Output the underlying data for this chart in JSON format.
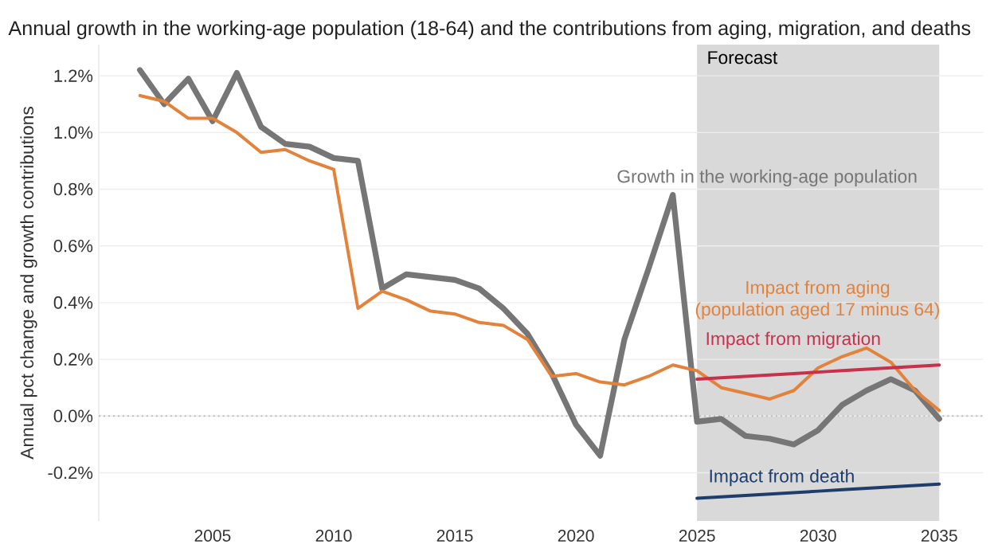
{
  "chart_data": {
    "type": "line",
    "title": "Annual growth in the working-age population (18-64) and the contributions from aging, migration, and deaths",
    "ylabel": "Annual pct change and growth contributions",
    "x": [
      2002,
      2003,
      2004,
      2005,
      2006,
      2007,
      2008,
      2009,
      2010,
      2011,
      2012,
      2013,
      2014,
      2015,
      2016,
      2017,
      2018,
      2019,
      2020,
      2021,
      2022,
      2023,
      2024,
      2025,
      2026,
      2027,
      2028,
      2029,
      2030,
      2031,
      2032,
      2033,
      2034,
      2035
    ],
    "series": [
      {
        "name": "Growth in the working-age population",
        "color": "#767676",
        "values": [
          1.22,
          1.1,
          1.19,
          1.04,
          1.21,
          1.02,
          0.96,
          0.95,
          0.91,
          0.9,
          0.45,
          0.5,
          0.49,
          0.48,
          0.45,
          0.38,
          0.29,
          0.15,
          -0.03,
          -0.14,
          0.27,
          0.52,
          0.78,
          -0.02,
          -0.01,
          -0.07,
          -0.08,
          -0.1,
          -0.05,
          0.04,
          0.09,
          0.13,
          0.09,
          -0.01
        ]
      },
      {
        "name": "Impact from aging (population aged 17 minus 64)",
        "color": "#e3823b",
        "values": [
          1.13,
          1.11,
          1.05,
          1.05,
          1.0,
          0.93,
          0.94,
          0.9,
          0.87,
          0.38,
          0.44,
          0.41,
          0.37,
          0.36,
          0.33,
          0.32,
          0.27,
          0.14,
          0.15,
          0.12,
          0.11,
          0.14,
          0.18,
          0.16,
          0.1,
          0.08,
          0.06,
          0.09,
          0.17,
          0.21,
          0.24,
          0.19,
          0.09,
          0.02
        ]
      },
      {
        "name": "Impact from migration",
        "color": "#c8304b",
        "values": [
          null,
          null,
          null,
          null,
          null,
          null,
          null,
          null,
          null,
          null,
          null,
          null,
          null,
          null,
          null,
          null,
          null,
          null,
          null,
          null,
          null,
          null,
          null,
          0.13,
          0.135,
          0.14,
          0.145,
          0.15,
          0.155,
          0.16,
          0.165,
          0.17,
          0.175,
          0.18
        ]
      },
      {
        "name": "Impact from death",
        "color": "#1f3d6b",
        "values": [
          null,
          null,
          null,
          null,
          null,
          null,
          null,
          null,
          null,
          null,
          null,
          null,
          null,
          null,
          null,
          null,
          null,
          null,
          null,
          null,
          null,
          null,
          null,
          -0.29,
          -0.285,
          -0.28,
          -0.275,
          -0.27,
          -0.265,
          -0.26,
          -0.255,
          -0.25,
          -0.245,
          -0.24
        ]
      }
    ],
    "xlim": [
      2000.3,
      2036.8
    ],
    "ylim": [
      -0.37,
      1.31
    ],
    "xticks": [
      2005,
      2010,
      2015,
      2020,
      2025,
      2030,
      2035
    ],
    "yticks": [
      {
        "value": -0.2,
        "label": "-0.2%"
      },
      {
        "value": 0,
        "label": "0.0%"
      },
      {
        "value": 0.2,
        "label": "0.2%"
      },
      {
        "value": 0.4,
        "label": "0.4%"
      },
      {
        "value": 0.6,
        "label": "0.6%"
      },
      {
        "value": 0.8,
        "label": "0.8%"
      },
      {
        "value": 1.0,
        "label": "1.0%"
      },
      {
        "value": 1.2,
        "label": "1.2%"
      }
    ],
    "grid": "y",
    "legend": false,
    "marker": "none",
    "bands": [
      {
        "axis": "x",
        "from": 2025,
        "to": 2035,
        "label": "Forecast",
        "color": "#d9d9d9"
      }
    ],
    "ref_lines": [
      {
        "axis": "y",
        "value": 0,
        "color": "#bdbdbd",
        "line_style": "dotted"
      }
    ]
  }
}
